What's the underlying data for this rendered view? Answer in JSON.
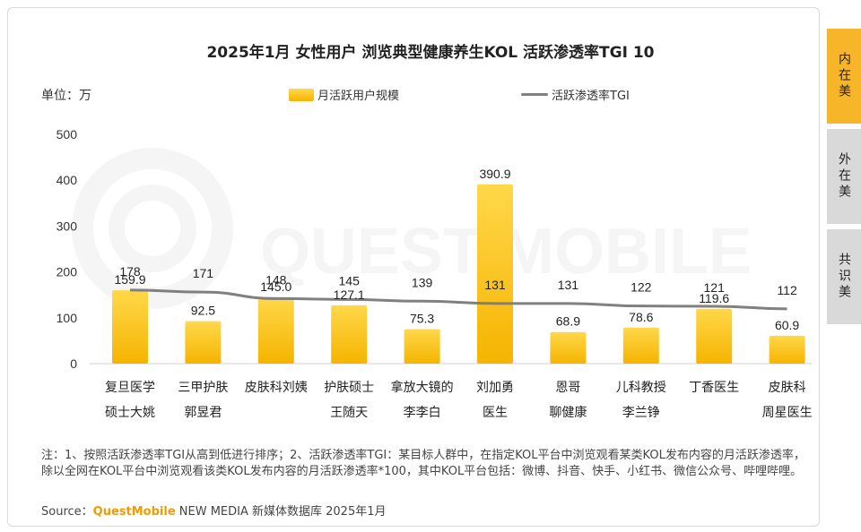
{
  "page": {
    "title": "2025年1月 女性用户 浏览典型健康养生KOL 活跃渗透率TGI 10",
    "unit": "单位：万",
    "watermark": "QUEST MOBILE",
    "footnote": "注：1、按照活跃渗透率TGI从高到低进行排序；2、活跃渗透率TGI：某目标人群中，在指定KOL平台中浏览观看某类KOL发布内容的月活跃渗透率，除以全网在KOL平台中浏览观看该类KOL发布内容的月活跃渗透率*100，其中KOL平台包括：微博、抖音、快手、小红书、微信公众号、哔哩哔哩。",
    "source_label": "Source：",
    "source_brand": "QuestMobile",
    "source_rest": " NEW MEDIA 新媒体数据库 2025年1月"
  },
  "tabs": [
    {
      "label": "内在美",
      "active": true
    },
    {
      "label": "外在美",
      "active": false
    },
    {
      "label": "共识美",
      "active": false
    }
  ],
  "chart_data": {
    "type": "bar",
    "title": "2025年1月 女性用户 浏览典型健康养生KOL 活跃渗透率TGI 10",
    "ylabel": "单位：万",
    "ylim": [
      0,
      500
    ],
    "yticks": [
      0,
      100,
      200,
      300,
      400,
      500
    ],
    "categories": [
      [
        "复旦医学",
        "硕士大姚"
      ],
      [
        "三甲护肤",
        "郭昱君"
      ],
      [
        "皮肤科刘姨",
        ""
      ],
      [
        "护肤硕士",
        "王随天"
      ],
      [
        "拿放大镜的",
        "李李白"
      ],
      [
        "刘加勇",
        "医生"
      ],
      [
        "恩哥",
        "聊健康"
      ],
      [
        "儿科教授",
        "李兰铮"
      ],
      [
        "丁香医生",
        ""
      ],
      [
        "皮肤科",
        "周星医生"
      ]
    ],
    "series": [
      {
        "name": "月活跃用户规模",
        "type": "bar",
        "values": [
          159.9,
          92.5,
          145.0,
          127.1,
          75.3,
          390.9,
          68.9,
          78.6,
          119.6,
          60.9
        ],
        "labels": [
          "159.9",
          "92.5",
          "145.0",
          "127.1",
          "75.3",
          "390.9",
          "68.9",
          "78.6",
          "119.6",
          "60.9"
        ],
        "color_top": "#ffd84a",
        "color_bottom": "#f5b400"
      },
      {
        "name": "活跃渗透率TGI",
        "type": "line",
        "values": [
          178,
          171,
          148,
          145,
          139,
          131,
          131,
          122,
          121,
          112
        ],
        "labels": [
          "178",
          "171",
          "148",
          "145",
          "139",
          "131",
          "131",
          "122",
          "121",
          "112"
        ],
        "color": "#808080"
      }
    ],
    "legend_position": "top-center"
  }
}
